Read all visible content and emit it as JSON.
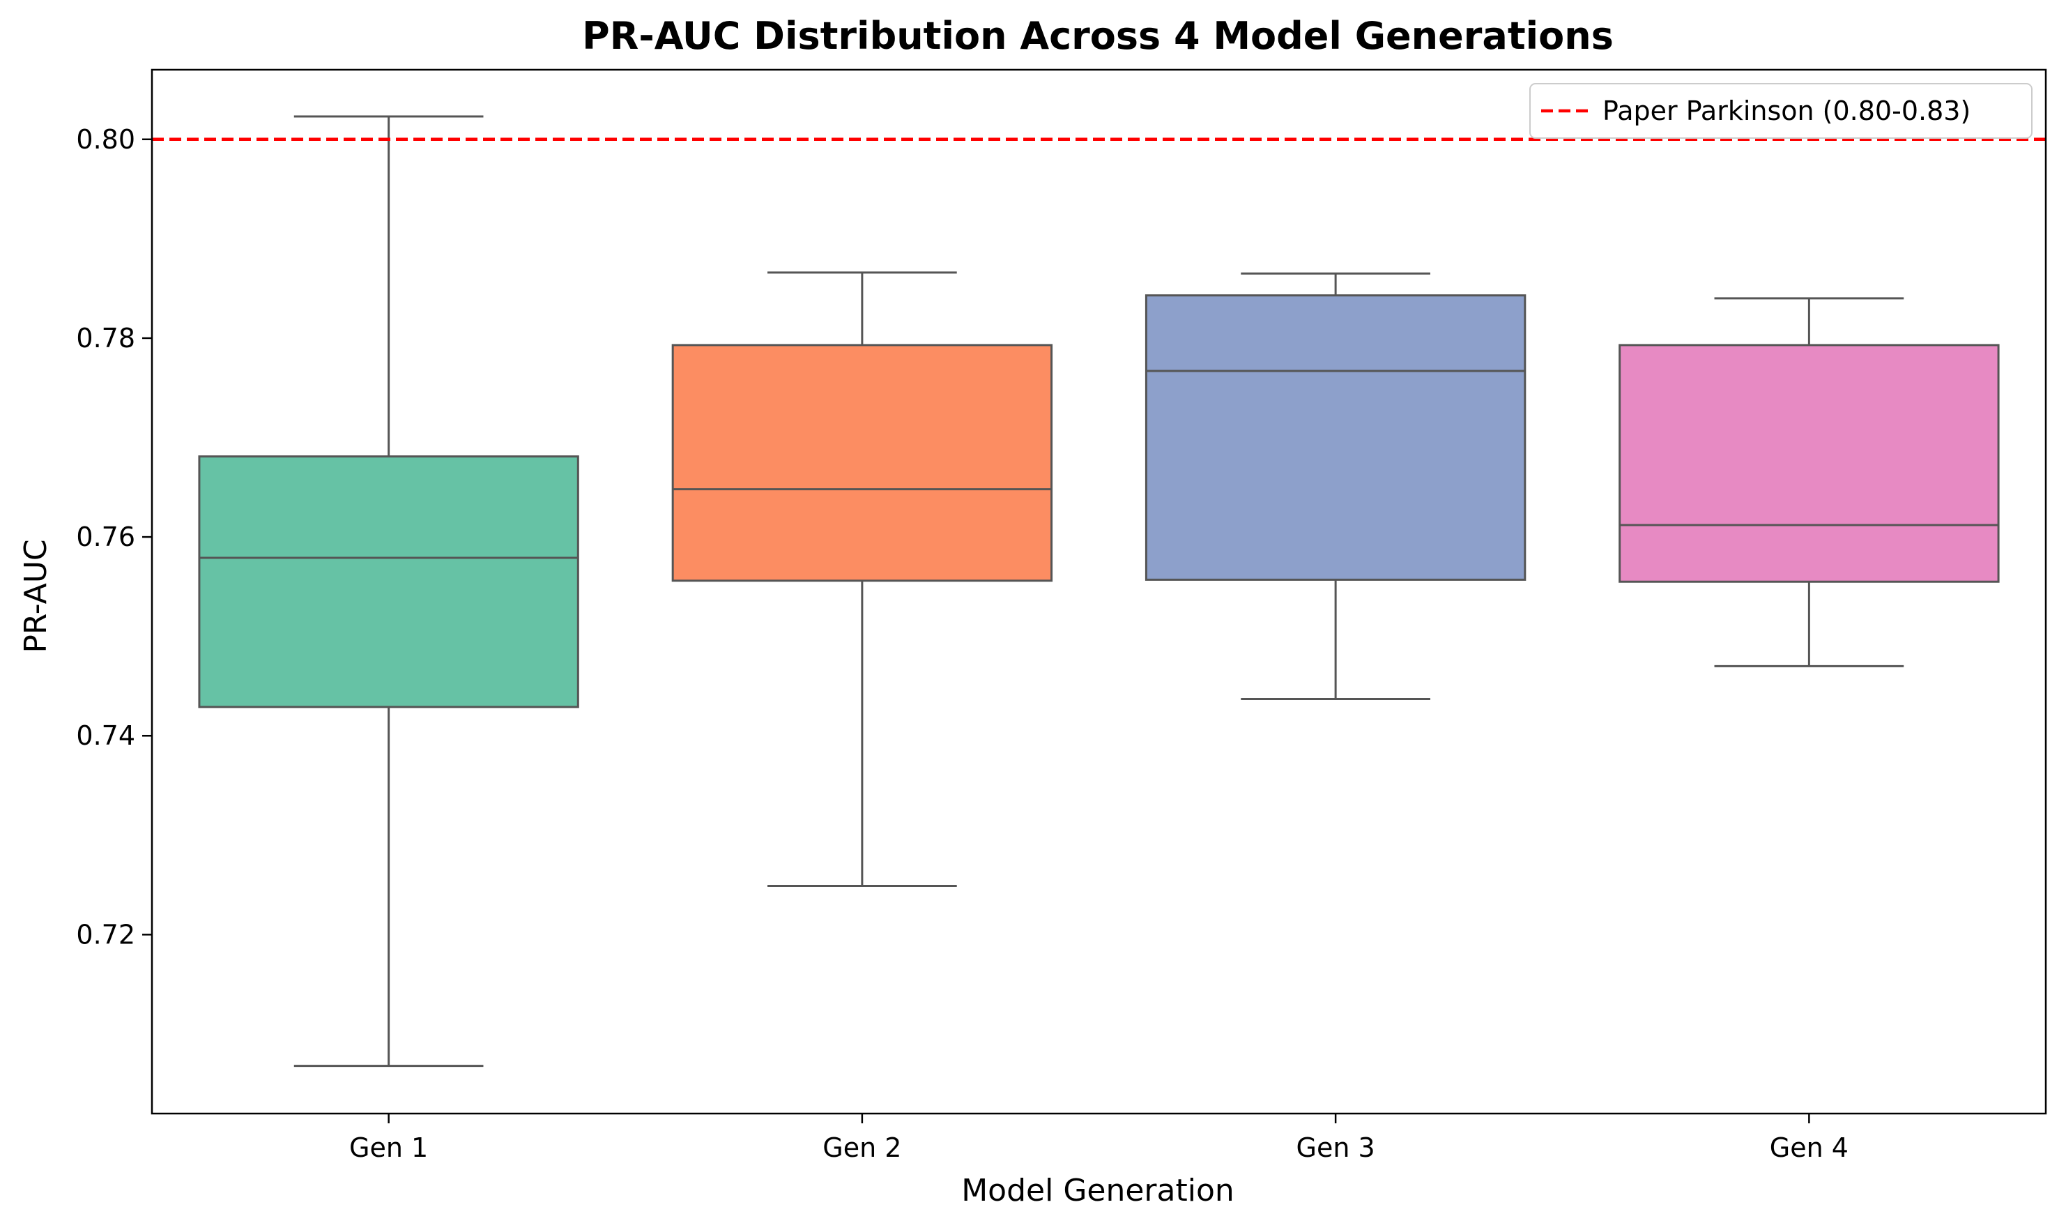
{
  "chart_data": {
    "type": "box",
    "title": "PR-AUC Distribution Across 4 Model Generations",
    "xlabel": "Model Generation",
    "ylabel": "PR-AUC",
    "ylim": [
      0.702,
      0.807
    ],
    "yticks": [
      0.72,
      0.74,
      0.76,
      0.78,
      0.8
    ],
    "ytick_labels": [
      "0.72",
      "0.74",
      "0.76",
      "0.78",
      "0.80"
    ],
    "grid": false,
    "categories": [
      "Gen 1",
      "Gen 2",
      "Gen 3",
      "Gen 4"
    ],
    "boxes": [
      {
        "category": "Gen 1",
        "min": 0.7068,
        "q1": 0.7429,
        "median": 0.7579,
        "q3": 0.7681,
        "max": 0.8023,
        "color": "#66c2a5"
      },
      {
        "category": "Gen 2",
        "min": 0.7249,
        "q1": 0.7556,
        "median": 0.7648,
        "q3": 0.7793,
        "max": 0.7866,
        "color": "#fc8d62"
      },
      {
        "category": "Gen 3",
        "min": 0.7437,
        "q1": 0.7557,
        "median": 0.7767,
        "q3": 0.7843,
        "max": 0.7865,
        "color": "#8da0cb"
      },
      {
        "category": "Gen 4",
        "min": 0.747,
        "q1": 0.7555,
        "median": 0.7612,
        "q3": 0.7793,
        "max": 0.784,
        "color": "#e78ac3"
      }
    ],
    "reference_line": {
      "y": 0.8,
      "style": "dashed",
      "color": "#ff0000",
      "label": "Paper Parkinson (0.80-0.83)"
    },
    "legend": {
      "placement": "top-right",
      "entries": [
        "Paper Parkinson (0.80-0.83)"
      ]
    },
    "box_edge_color": "#555555"
  }
}
